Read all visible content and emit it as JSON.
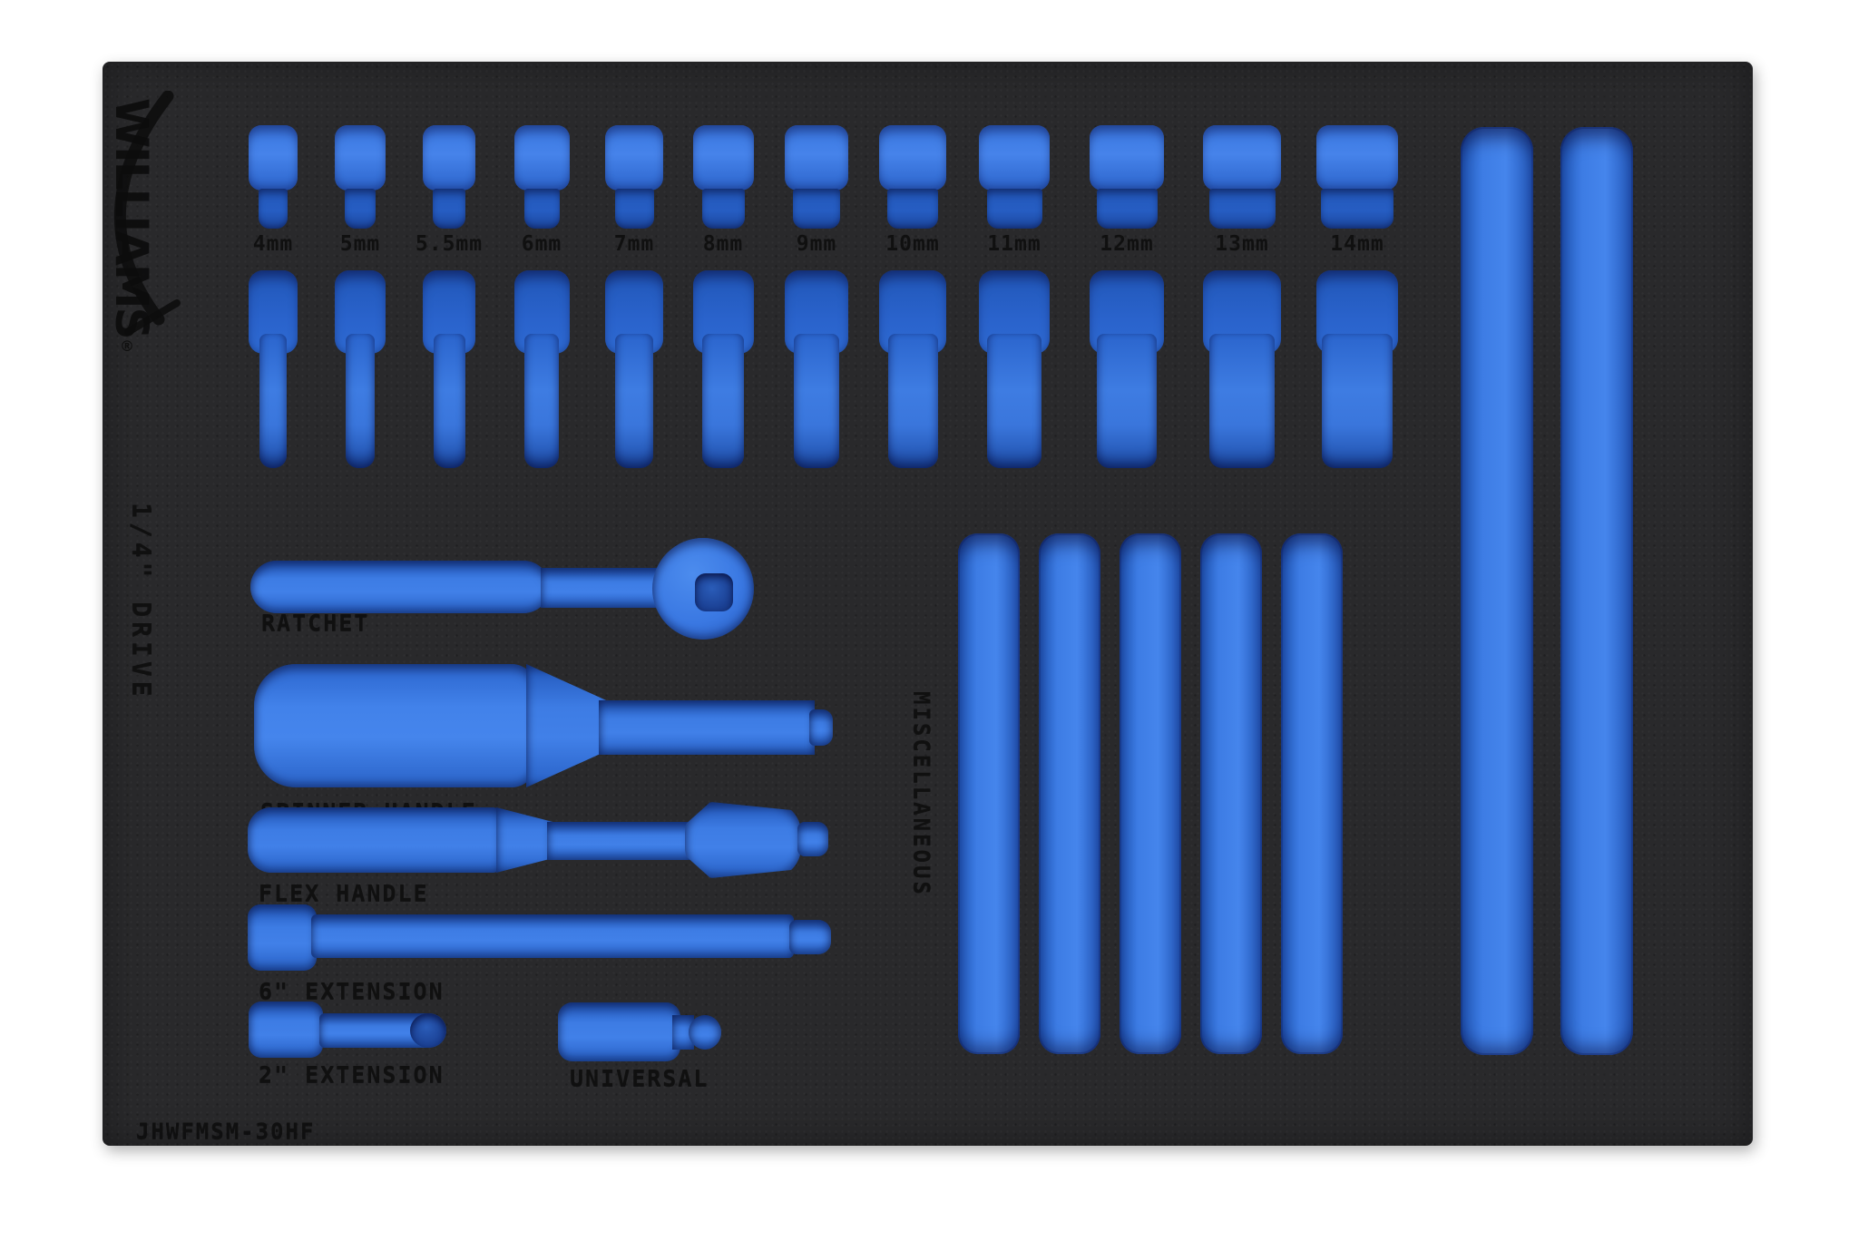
{
  "brand": {
    "name": "WILLIAMS",
    "registered": "®"
  },
  "labels": {
    "drive": "1/4\" DRIVE",
    "miscellaneous": "MISCELLANEOUS",
    "part_number": "JHWFMSM-30HF"
  },
  "sockets": {
    "sizes": [
      "4mm",
      "5mm",
      "5.5mm",
      "6mm",
      "7mm",
      "8mm",
      "9mm",
      "10mm",
      "11mm",
      "12mm",
      "13mm",
      "14mm"
    ],
    "rows": [
      "shallow-sockets",
      "deep-sockets"
    ]
  },
  "tools": {
    "ratchet": "RATCHET",
    "spinner_handle": "SPINNER HANDLE",
    "flex_handle": "FLEX HANDLE",
    "extension_6": "6\" EXTENSION",
    "extension_2": "2\" EXTENSION",
    "universal": "UNIVERSAL"
  },
  "misc_section": {
    "slot_count": 5,
    "long_slot_count": 2
  },
  "colors": {
    "background": "#ffffff",
    "foam": "#29292b",
    "cutout_blue": "#3d7ce4",
    "cutout_blue_light": "#4585ec",
    "cutout_blue_dark": "#1c479f",
    "engraved_text": "#0d0d0d"
  }
}
